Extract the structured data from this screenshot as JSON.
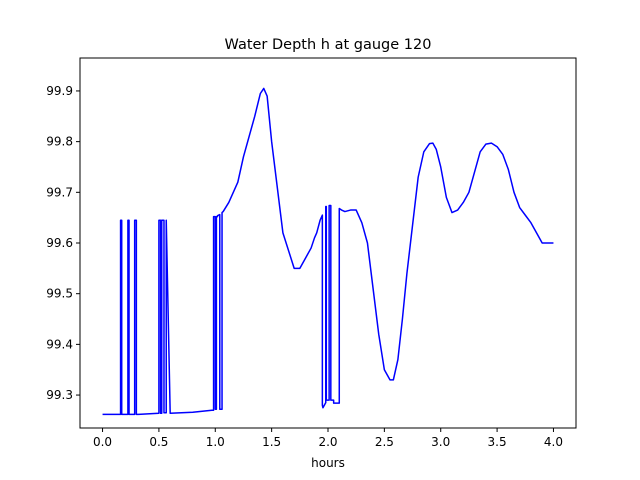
{
  "chart_data": {
    "type": "line",
    "title": "Water Depth h at gauge 120",
    "xlabel": "hours",
    "ylabel": "",
    "xlim": [
      -0.2,
      4.2
    ],
    "ylim": [
      99.235,
      99.965
    ],
    "xticks": [
      0.0,
      0.5,
      1.0,
      1.5,
      2.0,
      2.5,
      3.0,
      3.5,
      4.0
    ],
    "xtick_labels": [
      "0.0",
      "0.5",
      "1.0",
      "1.5",
      "2.0",
      "2.5",
      "3.0",
      "3.5",
      "4.0"
    ],
    "yticks": [
      99.3,
      99.4,
      99.5,
      99.6,
      99.7,
      99.8,
      99.9
    ],
    "ytick_labels": [
      "99.3",
      "99.4",
      "99.5",
      "99.6",
      "99.7",
      "99.8",
      "99.9"
    ],
    "grid": false,
    "legend": "none",
    "series": [
      {
        "color": "#0000ff",
        "x": [
          0.0,
          0.15,
          0.16,
          0.16,
          0.17,
          0.17,
          0.18,
          0.18,
          0.225,
          0.225,
          0.235,
          0.235,
          0.285,
          0.285,
          0.3,
          0.3,
          0.32,
          0.32,
          0.5,
          0.5,
          0.515,
          0.515,
          0.525,
          0.525,
          0.545,
          0.545,
          0.565,
          0.565,
          0.6,
          0.8,
          0.97,
          0.985,
          0.985,
          1.0,
          1.0,
          1.01,
          1.01,
          1.02,
          1.02,
          1.04,
          1.04,
          1.06,
          1.06,
          1.07,
          1.12,
          1.2,
          1.25,
          1.3,
          1.35,
          1.4,
          1.43,
          1.46,
          1.5,
          1.6,
          1.7,
          1.75,
          1.8,
          1.85,
          1.88,
          1.9,
          1.93,
          1.95,
          1.95,
          1.955,
          1.98,
          1.98,
          1.985,
          1.985,
          2.01,
          2.01,
          2.025,
          2.025,
          2.05,
          2.05,
          2.1,
          2.1,
          2.12,
          2.15,
          2.2,
          2.25,
          2.3,
          2.35,
          2.4,
          2.45,
          2.5,
          2.55,
          2.58,
          2.62,
          2.66,
          2.7,
          2.8,
          2.85,
          2.9,
          2.93,
          2.96,
          3.0,
          3.05,
          3.1,
          3.15,
          3.2,
          3.25,
          3.3,
          3.35,
          3.4,
          3.45,
          3.5,
          3.55,
          3.6,
          3.65,
          3.7,
          3.75,
          3.8,
          3.85,
          3.9,
          3.95,
          4.0
        ],
        "y": [
          99.262,
          99.262,
          99.262,
          99.645,
          99.645,
          99.262,
          99.262,
          99.262,
          99.262,
          99.645,
          99.645,
          99.262,
          99.262,
          99.645,
          99.645,
          99.262,
          99.262,
          99.262,
          99.264,
          99.645,
          99.645,
          99.264,
          99.264,
          99.645,
          99.645,
          99.265,
          99.265,
          99.645,
          99.264,
          99.266,
          99.27,
          99.27,
          99.652,
          99.652,
          99.272,
          99.272,
          99.652,
          99.652,
          99.654,
          99.656,
          99.272,
          99.272,
          99.66,
          99.662,
          99.68,
          99.72,
          99.77,
          99.81,
          99.85,
          99.895,
          99.905,
          99.89,
          99.8,
          99.62,
          99.55,
          99.55,
          99.57,
          99.59,
          99.61,
          99.62,
          99.645,
          99.655,
          99.28,
          99.275,
          99.285,
          99.672,
          99.672,
          99.29,
          99.29,
          99.674,
          99.674,
          99.29,
          99.29,
          99.284,
          99.284,
          99.668,
          99.665,
          99.662,
          99.665,
          99.665,
          99.64,
          99.6,
          99.51,
          99.42,
          99.35,
          99.33,
          99.33,
          99.37,
          99.45,
          99.54,
          99.73,
          99.78,
          99.796,
          99.797,
          99.785,
          99.75,
          99.69,
          99.66,
          99.665,
          99.68,
          99.7,
          99.74,
          99.78,
          99.795,
          99.797,
          99.79,
          99.775,
          99.745,
          99.7,
          99.67,
          99.655,
          99.64,
          99.62,
          99.6,
          99.6,
          99.6
        ]
      }
    ]
  }
}
